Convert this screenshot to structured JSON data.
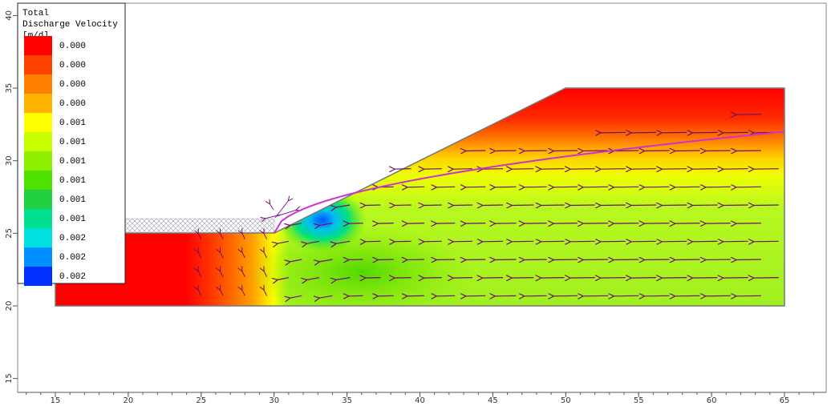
{
  "legend": {
    "title": [
      "Total",
      "Discharge Velocity",
      "[m/d]"
    ],
    "entries": [
      {
        "label": "0.000",
        "color": "#ff0000"
      },
      {
        "label": "0.000",
        "color": "#ff4200"
      },
      {
        "label": "0.000",
        "color": "#ff8000"
      },
      {
        "label": "0.000",
        "color": "#ffb400"
      },
      {
        "label": "0.001",
        "color": "#ffff00"
      },
      {
        "label": "0.001",
        "color": "#c8ff00"
      },
      {
        "label": "0.001",
        "color": "#8cf000"
      },
      {
        "label": "0.001",
        "color": "#50e000"
      },
      {
        "label": "0.001",
        "color": "#20d040"
      },
      {
        "label": "0.001",
        "color": "#00e090"
      },
      {
        "label": "0.002",
        "color": "#00e0e0"
      },
      {
        "label": "0.002",
        "color": "#0090ff"
      },
      {
        "label": "0.002",
        "color": "#0030ff"
      }
    ]
  },
  "axes": {
    "x_ticks": [
      15,
      20,
      25,
      30,
      35,
      40,
      45,
      50,
      55,
      60,
      65
    ],
    "y_ticks": [
      15,
      20,
      25,
      30,
      35,
      40
    ]
  }
}
